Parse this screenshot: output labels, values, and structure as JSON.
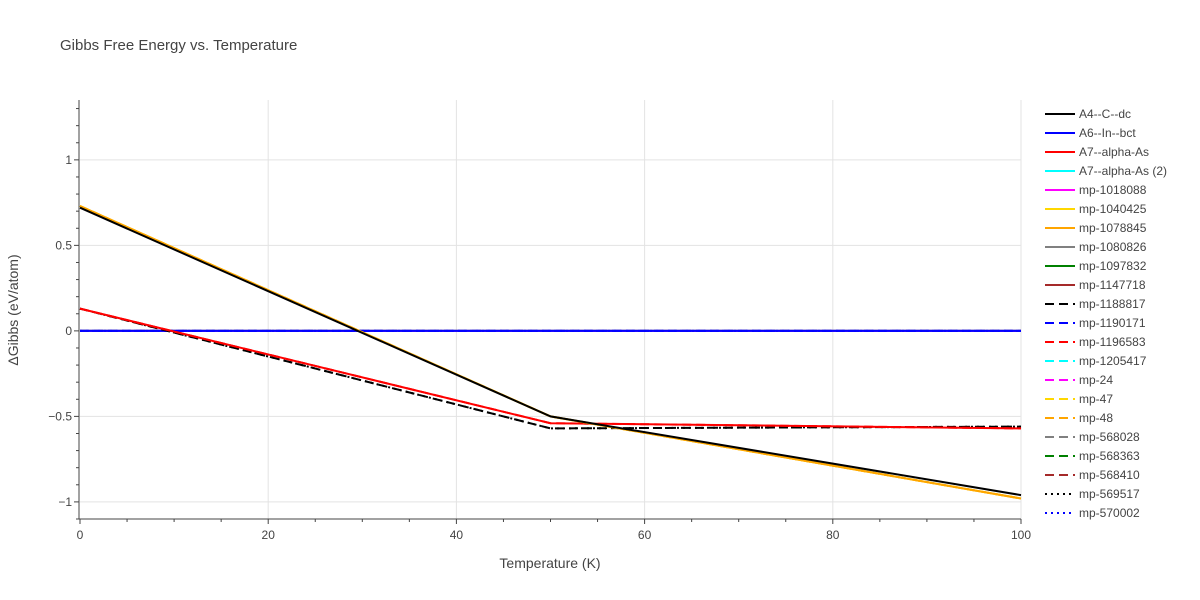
{
  "chart_data": {
    "type": "line",
    "title": "Gibbs Free Energy vs. Temperature",
    "xlabel": "Temperature (K)",
    "ylabel": "ΔGibbs (eV/atom)",
    "xlim": [
      0,
      100
    ],
    "ylim": [
      -1.1,
      1.35
    ],
    "x_ticks": [
      0,
      20,
      40,
      60,
      80,
      100
    ],
    "y_ticks": [
      1,
      0.5,
      0,
      -0.5,
      -1
    ],
    "y_tick_labels": [
      "1",
      "0.5",
      "0",
      "−0.5",
      "−1"
    ],
    "grid": true,
    "legend_position": "right",
    "series": [
      {
        "name": "A4--C--dc",
        "color": "#000000",
        "dash": "solid",
        "x": [
          0,
          50,
          100
        ],
        "y": [
          0.72,
          -0.5,
          -0.96
        ]
      },
      {
        "name": "A6--In--bct",
        "color": "#0000ff",
        "dash": "solid",
        "x": [
          0,
          100
        ],
        "y": [
          0,
          0
        ]
      },
      {
        "name": "A7--alpha-As",
        "color": "#ff0000",
        "dash": "solid",
        "x": [
          0,
          50,
          100
        ],
        "y": [
          0.13,
          -0.54,
          -0.57
        ]
      },
      {
        "name": "A7--alpha-As (2)",
        "color": "#00ffff",
        "dash": "solid",
        "x": [
          0,
          100
        ],
        "y": [
          0,
          0
        ]
      },
      {
        "name": "mp-1018088",
        "color": "#ff00ff",
        "dash": "solid",
        "x": [
          0,
          100
        ],
        "y": [
          0,
          0
        ]
      },
      {
        "name": "mp-1040425",
        "color": "#ffd700",
        "dash": "solid",
        "x": [
          0,
          50,
          100
        ],
        "y": [
          0.73,
          -0.5,
          -0.98
        ]
      },
      {
        "name": "mp-1078845",
        "color": "#ffa500",
        "dash": "solid",
        "x": [
          0,
          50,
          100
        ],
        "y": [
          0.73,
          -0.5,
          -0.98
        ]
      },
      {
        "name": "mp-1080826",
        "color": "#808080",
        "dash": "solid",
        "x": [
          0,
          100
        ],
        "y": [
          0,
          0
        ]
      },
      {
        "name": "mp-1097832",
        "color": "#008000",
        "dash": "solid",
        "x": [
          0,
          100
        ],
        "y": [
          0,
          0
        ]
      },
      {
        "name": "mp-1147718",
        "color": "#a52a2a",
        "dash": "solid",
        "x": [
          0,
          100
        ],
        "y": [
          0,
          0
        ]
      },
      {
        "name": "mp-1188817",
        "color": "#000000",
        "dash": "dash",
        "x": [
          0,
          50,
          100
        ],
        "y": [
          0.13,
          -0.57,
          -0.56
        ]
      },
      {
        "name": "mp-1190171",
        "color": "#0000ff",
        "dash": "dash",
        "x": [
          0,
          100
        ],
        "y": [
          0,
          0
        ]
      },
      {
        "name": "mp-1196583",
        "color": "#ff0000",
        "dash": "dash",
        "x": [
          0,
          50,
          100
        ],
        "y": [
          0.13,
          -0.54,
          -0.57
        ]
      },
      {
        "name": "mp-1205417",
        "color": "#00ffff",
        "dash": "dash",
        "x": [
          0,
          100
        ],
        "y": [
          0,
          0
        ]
      },
      {
        "name": "mp-24",
        "color": "#ff00ff",
        "dash": "dash",
        "x": [
          0,
          100
        ],
        "y": [
          0,
          0
        ]
      },
      {
        "name": "mp-47",
        "color": "#ffd700",
        "dash": "dash",
        "x": [
          0,
          50,
          100
        ],
        "y": [
          0.73,
          -0.5,
          -0.98
        ]
      },
      {
        "name": "mp-48",
        "color": "#ffa500",
        "dash": "dash",
        "x": [
          0,
          50,
          100
        ],
        "y": [
          0.73,
          -0.5,
          -0.98
        ]
      },
      {
        "name": "mp-568028",
        "color": "#808080",
        "dash": "dash",
        "x": [
          0,
          100
        ],
        "y": [
          0,
          0
        ]
      },
      {
        "name": "mp-568363",
        "color": "#008000",
        "dash": "dash",
        "x": [
          0,
          100
        ],
        "y": [
          0,
          0
        ]
      },
      {
        "name": "mp-568410",
        "color": "#a52a2a",
        "dash": "dash",
        "x": [
          0,
          100
        ],
        "y": [
          0,
          0
        ]
      },
      {
        "name": "mp-569517",
        "color": "#000000",
        "dash": "dot",
        "x": [
          0,
          50,
          100
        ],
        "y": [
          0.13,
          -0.57,
          -0.56
        ]
      },
      {
        "name": "mp-570002",
        "color": "#0000ff",
        "dash": "dot",
        "x": [
          0,
          100
        ],
        "y": [
          0,
          0
        ]
      }
    ],
    "draw_order": [
      "mp-1080826",
      "mp-1097832",
      "mp-1147718",
      "A7--alpha-As (2)",
      "mp-1018088",
      "mp-568028",
      "mp-568363",
      "mp-568410",
      "mp-1205417",
      "mp-24",
      "A6--In--bct",
      "mp-1190171",
      "mp-570002",
      "mp-1188817",
      "mp-569517",
      "A7--alpha-As",
      "mp-1196583",
      "mp-1040425",
      "mp-1078845",
      "mp-47",
      "mp-48",
      "A4--C--dc"
    ]
  }
}
